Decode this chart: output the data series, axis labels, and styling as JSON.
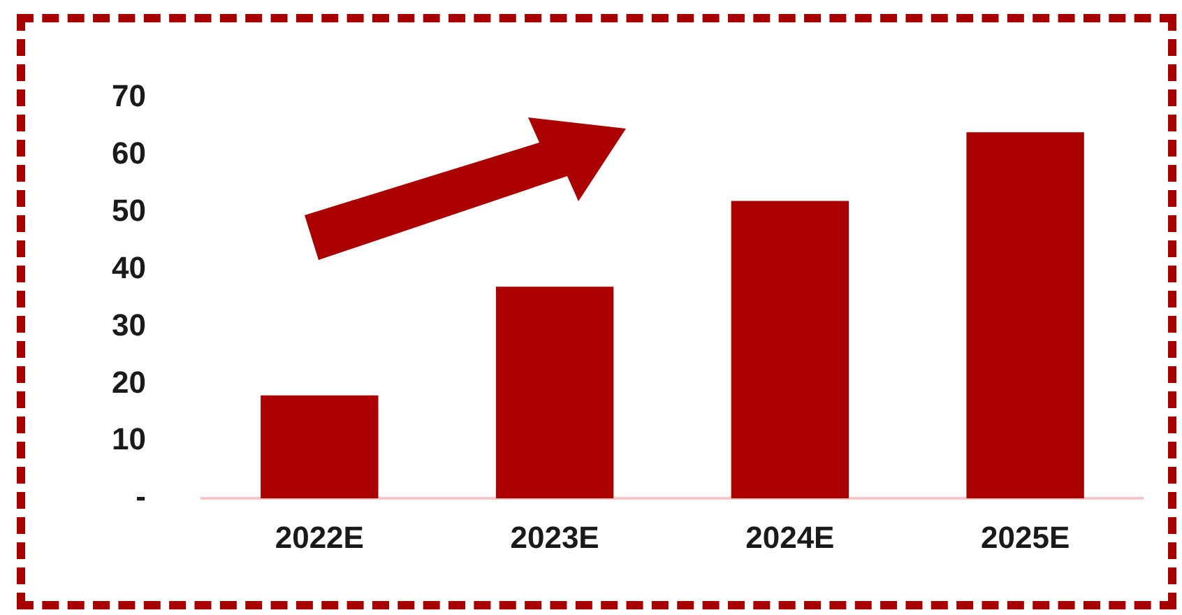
{
  "chart_data": {
    "type": "bar",
    "categories": [
      "2022E",
      "2023E",
      "2024E",
      "2025E"
    ],
    "values": [
      18,
      37,
      52,
      64
    ],
    "color": "#ab0000",
    "ylim": [
      0,
      70
    ],
    "yticks": [
      {
        "value": 0,
        "label": "-"
      },
      10,
      20,
      30,
      40,
      50,
      60,
      70
    ],
    "grid": false
  }
}
